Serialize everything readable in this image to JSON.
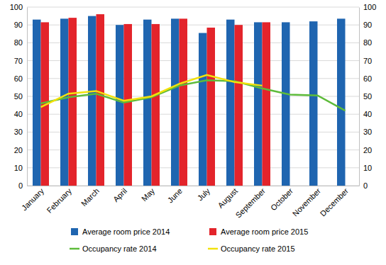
{
  "chart_data": {
    "type": "bar",
    "categories": [
      "January",
      "February",
      "March",
      "April",
      "May",
      "June",
      "July",
      "August",
      "September",
      "October",
      "November",
      "December"
    ],
    "series": [
      {
        "name": "Average room price 2014",
        "color": "#1f65b0",
        "type": "bar",
        "values": [
          93,
          93.5,
          95,
          90,
          93,
          93.5,
          85.5,
          93,
          91.5,
          91.5,
          92,
          93.5
        ]
      },
      {
        "name": "Average room price 2015",
        "color": "#e3242b",
        "type": "bar",
        "values": [
          91.5,
          94,
          96,
          90.5,
          90.5,
          93.5,
          88.5,
          90,
          91.5,
          null,
          null,
          null
        ]
      },
      {
        "name": "Occupancy rate 2014",
        "color": "#5dbb3a",
        "type": "line",
        "axis": "y2",
        "values": [
          46,
          49.5,
          51.5,
          46.5,
          49.5,
          56,
          59,
          58.5,
          54.5,
          51,
          50.5,
          42
        ]
      },
      {
        "name": "Occupancy rate 2015",
        "color": "#f2e20c",
        "type": "line",
        "axis": "y2",
        "values": [
          44,
          51.5,
          53,
          47.5,
          50,
          57,
          62,
          58,
          56,
          null,
          null,
          null
        ]
      }
    ],
    "ylim": [
      0,
      100
    ],
    "yticks": [
      0,
      10,
      20,
      30,
      40,
      50,
      60,
      70,
      80,
      90,
      100
    ],
    "y2lim": [
      0,
      100
    ],
    "y2ticks": [
      0,
      10,
      20,
      30,
      40,
      50,
      60,
      70,
      80,
      90,
      100
    ],
    "grid": true,
    "legend": "bottom"
  }
}
